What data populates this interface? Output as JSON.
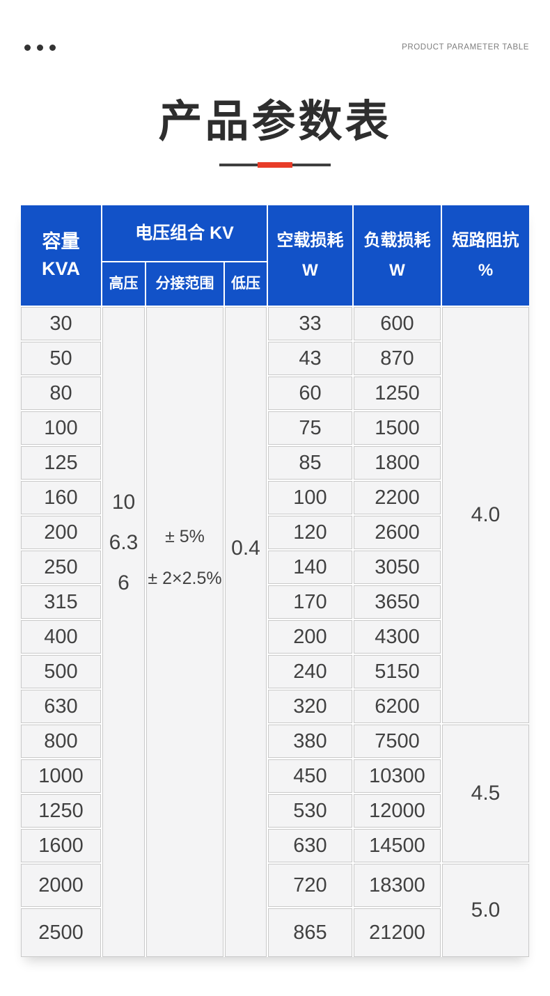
{
  "page": {
    "eyebrow": "PRODUCT PARAMETER TABLE",
    "title": "产品参数表"
  },
  "colors": {
    "header_blue": "#1252c8",
    "accent_red": "#e83c28",
    "body_text": "#414141"
  },
  "table": {
    "header": {
      "capacity_title": "容量",
      "capacity_unit": "KVA",
      "voltage_group": "电压组合 KV",
      "high_voltage": "高压",
      "tap_range": "分接范围",
      "low_voltage": "低压",
      "no_load_loss_title": "空载损耗",
      "no_load_loss_unit": "W",
      "load_loss_title": "负载损耗",
      "load_loss_unit": "W",
      "impedance_title": "短路阻抗",
      "impedance_unit": "%"
    },
    "voltage": {
      "high_values": [
        "10",
        "6.3",
        "6"
      ],
      "tap_values": [
        "± 5%",
        "± 2×2.5%"
      ],
      "low_value": "0.4"
    },
    "rows": [
      {
        "capacity": "30",
        "no_load_loss": "33",
        "load_loss": "600"
      },
      {
        "capacity": "50",
        "no_load_loss": "43",
        "load_loss": "870"
      },
      {
        "capacity": "80",
        "no_load_loss": "60",
        "load_loss": "1250"
      },
      {
        "capacity": "100",
        "no_load_loss": "75",
        "load_loss": "1500"
      },
      {
        "capacity": "125",
        "no_load_loss": "85",
        "load_loss": "1800"
      },
      {
        "capacity": "160",
        "no_load_loss": "100",
        "load_loss": "2200"
      },
      {
        "capacity": "200",
        "no_load_loss": "120",
        "load_loss": "2600"
      },
      {
        "capacity": "250",
        "no_load_loss": "140",
        "load_loss": "3050"
      },
      {
        "capacity": "315",
        "no_load_loss": "170",
        "load_loss": "3650"
      },
      {
        "capacity": "400",
        "no_load_loss": "200",
        "load_loss": "4300"
      },
      {
        "capacity": "500",
        "no_load_loss": "240",
        "load_loss": "5150"
      },
      {
        "capacity": "630",
        "no_load_loss": "320",
        "load_loss": "6200"
      },
      {
        "capacity": "800",
        "no_load_loss": "380",
        "load_loss": "7500"
      },
      {
        "capacity": "1000",
        "no_load_loss": "450",
        "load_loss": "10300"
      },
      {
        "capacity": "1250",
        "no_load_loss": "530",
        "load_loss": "12000"
      },
      {
        "capacity": "1600",
        "no_load_loss": "630",
        "load_loss": "14500"
      },
      {
        "capacity": "2000",
        "no_load_loss": "720",
        "load_loss": "18300"
      },
      {
        "capacity": "2500",
        "no_load_loss": "865",
        "load_loss": "21200"
      }
    ],
    "impedance_groups": [
      {
        "value": "4.0",
        "row_span": 12
      },
      {
        "value": "4.5",
        "row_span": 4
      },
      {
        "value": "5.0",
        "row_span": 2
      }
    ]
  }
}
